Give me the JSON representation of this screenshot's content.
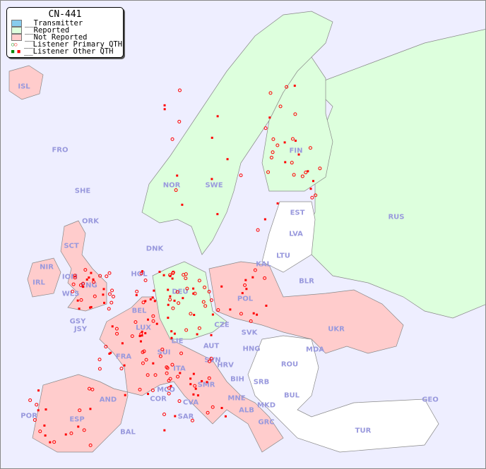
{
  "title": "CN-441",
  "legend": [
    {
      "label": "__Transmitter",
      "color": "#88ccee"
    },
    {
      "label": "__Reported",
      "color": "#ddffdd"
    },
    {
      "label": "__Not Reported",
      "color": "#ffcccc"
    },
    {
      "label": "__Listener Primary QTH",
      "icon": "circle-marker"
    },
    {
      "label": "__Listener Other QTH",
      "icon": "square-marker"
    }
  ],
  "colors": {
    "sea": "#eeeeff",
    "reported": "#ddffdd",
    "not_reported": "#ffcccc",
    "neutral": "#ffffff",
    "listener": "#ff0000",
    "listener_reported": "#008800"
  },
  "countries": [
    "ISL",
    "FRO",
    "SHE",
    "ORK",
    "NOR",
    "SWE",
    "FIN",
    "RUS",
    "EST",
    "LVA",
    "LTU",
    "KAL",
    "BLR",
    "DNK",
    "HOL",
    "DEU",
    "POL",
    "SCT",
    "NIR",
    "IOM",
    "ENG",
    "WLS",
    "IRL",
    "GSY",
    "JSY",
    "BEL",
    "LUX",
    "CZE",
    "SVK",
    "UKR",
    "MDA",
    "AUT",
    "HNG",
    "SUI",
    "LIE",
    "FRA",
    "SVN",
    "HRV",
    "ITA",
    "ROU",
    "BIH",
    "SRB",
    "MCO",
    "SMR",
    "COR",
    "AND",
    "BUL",
    "MNE",
    "CVA",
    "GEO",
    "MKD",
    "ALB",
    "POR",
    "ESP",
    "SAR",
    "GRC",
    "BAL",
    "TUR"
  ]
}
